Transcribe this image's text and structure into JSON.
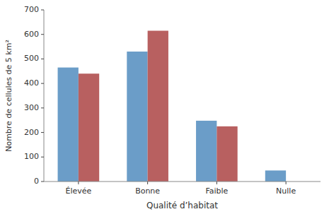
{
  "chart_data": {
    "type": "bar",
    "categories": [
      "Élevée",
      "Bonne",
      "Faible",
      "Nulle"
    ],
    "series": [
      {
        "color": "#6b9dc8",
        "values": [
          465,
          530,
          248,
          45
        ]
      },
      {
        "color": "#b86060",
        "values": [
          440,
          615,
          225,
          0
        ]
      }
    ],
    "xlabel": "Qualité d’habitat",
    "ylabel": "Nombre de cellules de 5 km²",
    "ylim": [
      0,
      700
    ],
    "yticks": [
      0,
      100,
      200,
      300,
      400,
      500,
      600,
      700
    ],
    "grid": false
  }
}
